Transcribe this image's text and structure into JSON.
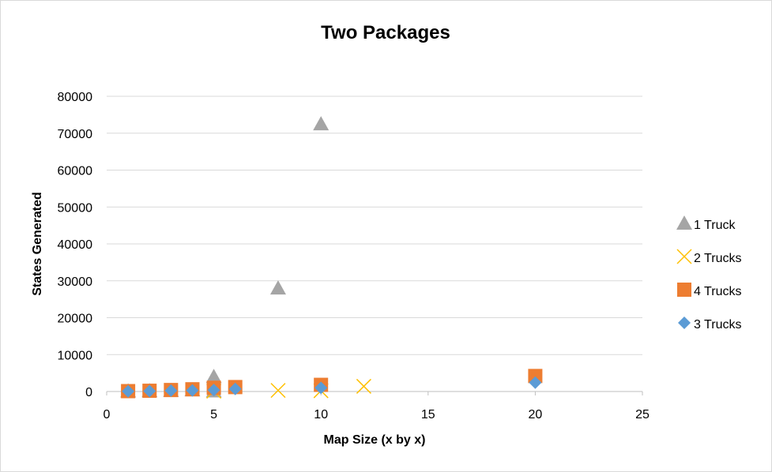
{
  "chart_data": {
    "type": "scatter",
    "title": "Two Packages",
    "xlabel": "Map Size (x by x)",
    "ylabel": "States Generated",
    "xlim": [
      0,
      25
    ],
    "ylim": [
      0,
      80000
    ],
    "xticks": [
      0,
      5,
      10,
      15,
      20,
      25
    ],
    "yticks": [
      0,
      10000,
      20000,
      30000,
      40000,
      50000,
      60000,
      70000,
      80000
    ],
    "grid": "horizontal",
    "legend_position": "right",
    "series": [
      {
        "name": "1 Truck",
        "marker": "triangle",
        "color": "#a5a5a5",
        "points": [
          [
            1,
            100
          ],
          [
            2,
            150
          ],
          [
            3,
            250
          ],
          [
            4,
            400
          ],
          [
            5,
            4000
          ],
          [
            5,
            100
          ],
          [
            8,
            28000
          ],
          [
            10,
            72500
          ]
        ]
      },
      {
        "name": "2 Trucks",
        "marker": "x",
        "color": "#ffc000",
        "points": [
          [
            5,
            100
          ],
          [
            8,
            300
          ],
          [
            10,
            200
          ],
          [
            12,
            1400
          ]
        ]
      },
      {
        "name": "4 Trucks",
        "marker": "square",
        "color": "#ed7d31",
        "points": [
          [
            1,
            100
          ],
          [
            2,
            200
          ],
          [
            3,
            400
          ],
          [
            4,
            600
          ],
          [
            5,
            1000
          ],
          [
            6,
            1200
          ],
          [
            10,
            1800
          ],
          [
            20,
            4200
          ]
        ]
      },
      {
        "name": "3 Trucks",
        "marker": "diamond",
        "color": "#5b9bd5",
        "points": [
          [
            1,
            60
          ],
          [
            2,
            120
          ],
          [
            3,
            250
          ],
          [
            4,
            300
          ],
          [
            5,
            400
          ],
          [
            6,
            700
          ],
          [
            10,
            1000
          ],
          [
            20,
            2400
          ]
        ]
      }
    ]
  }
}
